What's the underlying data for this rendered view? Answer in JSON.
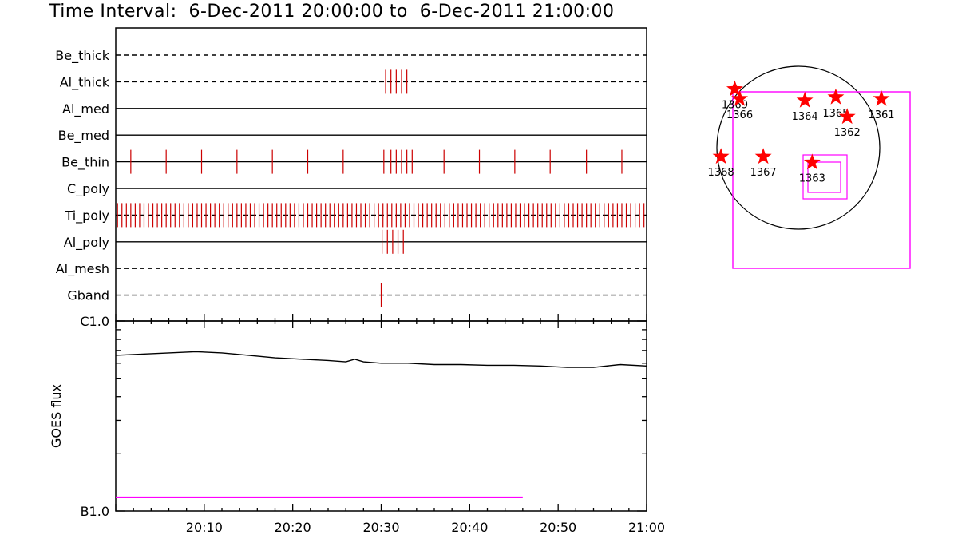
{
  "title": "Time Interval:  6-Dec-2011 20:00:00 to  6-Dec-2011 21:00:00",
  "colors": {
    "events": "#cc0000",
    "stars": "#ff0000",
    "fov": "#ff00ff",
    "goes": "#000000",
    "flare_bar": "#ff00ff"
  },
  "chart_data": [
    {
      "type": "event-timeline",
      "x_range_min": [
        0,
        60
      ],
      "rows": [
        {
          "label": "Be_thick",
          "line": "dashed",
          "events_min": []
        },
        {
          "label": "Al_thick",
          "line": "dashed",
          "events_min": [
            30.5,
            31.1,
            31.7,
            32.3,
            32.9
          ]
        },
        {
          "label": "Al_med",
          "line": "solid",
          "events_min": []
        },
        {
          "label": "Be_med",
          "line": "solid",
          "events_min": []
        },
        {
          "label": "Be_thin",
          "line": "solid",
          "events_min": [
            1.7,
            5.7,
            9.7,
            13.7,
            17.7,
            21.7,
            25.7,
            30.3,
            31.1,
            31.7,
            32.3,
            32.9,
            33.5,
            37.1,
            41.1,
            45.1,
            49.1,
            53.2,
            57.2
          ]
        },
        {
          "label": "C_poly",
          "line": "solid",
          "events_min": []
        },
        {
          "label": "Ti_poly",
          "line": "dashed",
          "events_min": "regular every ~0.5 min from 0 to 60"
        },
        {
          "label": "Al_poly",
          "line": "solid",
          "events_min": [
            30.1,
            30.7,
            31.3,
            31.9,
            32.5
          ]
        },
        {
          "label": "Al_mesh",
          "line": "dashed",
          "events_min": []
        },
        {
          "label": "Gband",
          "line": "dashed",
          "events_min": [
            30.0
          ]
        }
      ]
    },
    {
      "type": "line",
      "ylabel": "GOES flux",
      "y_scale": "log",
      "y_ticks": [
        "C1.0",
        "B1.0"
      ],
      "ylim": [
        1e-07,
        1e-06
      ],
      "x_ticks": [
        "20:10",
        "20:20",
        "20:30",
        "20:40",
        "20:50",
        "21:00"
      ],
      "x_range_min": [
        0,
        60
      ],
      "series": [
        {
          "x_min": [
            0,
            3,
            6,
            9,
            12,
            15,
            18,
            21,
            24,
            26,
            27,
            28,
            30,
            33,
            36,
            39,
            42,
            45,
            48,
            51,
            54,
            57,
            60
          ],
          "y": [
            6.6e-07,
            6.7e-07,
            6.8e-07,
            6.9e-07,
            6.8e-07,
            6.6e-07,
            6.4e-07,
            6.3e-07,
            6.2e-07,
            6.1e-07,
            6.3e-07,
            6.1e-07,
            6e-07,
            6e-07,
            5.9e-07,
            5.9e-07,
            5.85e-07,
            5.85e-07,
            5.8e-07,
            5.7e-07,
            5.7e-07,
            5.9e-07,
            5.8e-07
          ]
        }
      ],
      "flare_bar_min": [
        0,
        46
      ],
      "flare_bar_level": 1.18e-07
    },
    {
      "type": "scatter",
      "points": [
        {
          "label": "1369",
          "x": -0.78,
          "y": 0.72
        },
        {
          "label": "1366",
          "x": -0.72,
          "y": 0.6
        },
        {
          "label": "1364",
          "x": 0.08,
          "y": 0.58
        },
        {
          "label": "1365",
          "x": 0.46,
          "y": 0.62
        },
        {
          "label": "1362",
          "x": 0.6,
          "y": 0.38
        },
        {
          "label": "1361",
          "x": 1.02,
          "y": 0.6
        },
        {
          "label": "1368",
          "x": -0.95,
          "y": -0.11
        },
        {
          "label": "1367",
          "x": -0.43,
          "y": -0.11
        },
        {
          "label": "1363",
          "x": 0.17,
          "y": -0.18
        }
      ]
    }
  ]
}
